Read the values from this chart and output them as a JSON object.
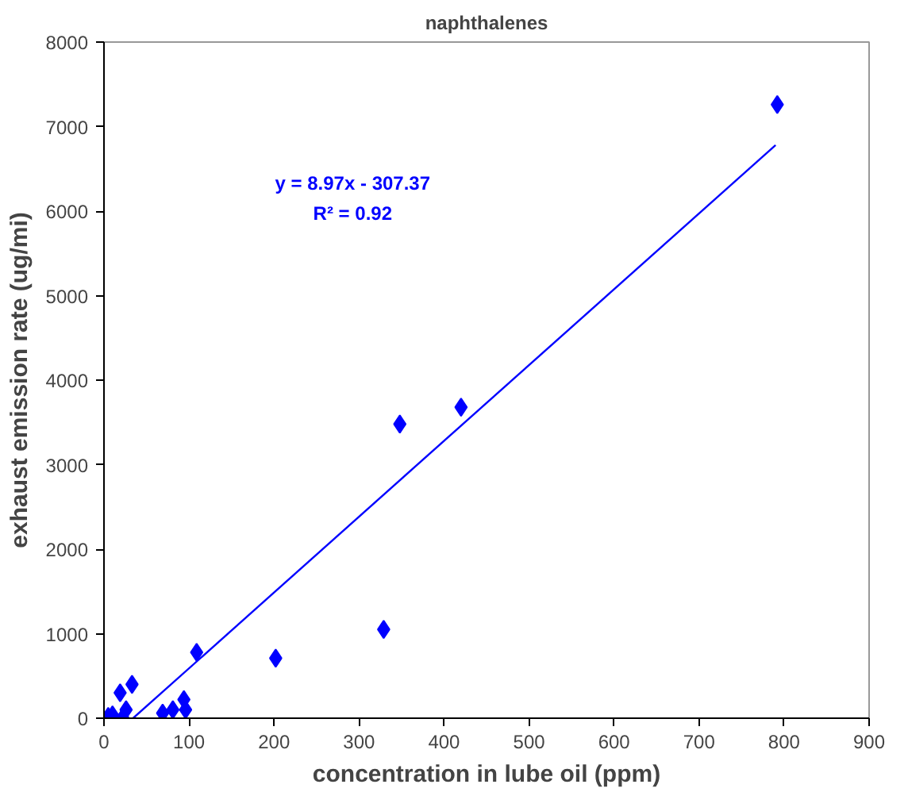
{
  "chart_data": {
    "type": "scatter",
    "title": "naphthalenes",
    "xlabel": "concentration in lube oil (ppm)",
    "ylabel": "exhaust emission rate (ug/mi)",
    "xlim": [
      0,
      900
    ],
    "xticks": [
      0,
      100,
      200,
      300,
      400,
      500,
      600,
      700,
      800,
      900
    ],
    "ylim": [
      0,
      8000
    ],
    "yticks": [
      0,
      1000,
      2000,
      3000,
      4000,
      5000,
      6000,
      7000,
      8000
    ],
    "grid": false,
    "series": [
      {
        "color": "#0000ff",
        "marker": "diamond",
        "x": [
          5,
          10,
          19,
          22,
          26,
          33,
          69,
          81,
          94,
          96,
          109,
          202,
          329,
          348,
          420,
          792
        ],
        "values": [
          20,
          40,
          300,
          10,
          100,
          400,
          60,
          100,
          220,
          100,
          780,
          710,
          1050,
          3480,
          3680,
          7260
        ]
      },
      {
        "type": "line",
        "color": "#0000ff",
        "x": [
          34.27,
          790
        ],
        "values": [
          0,
          6780
        ]
      }
    ],
    "annotations": [
      "y = 8.97x - 307.37",
      "R² = 0.92"
    ]
  }
}
